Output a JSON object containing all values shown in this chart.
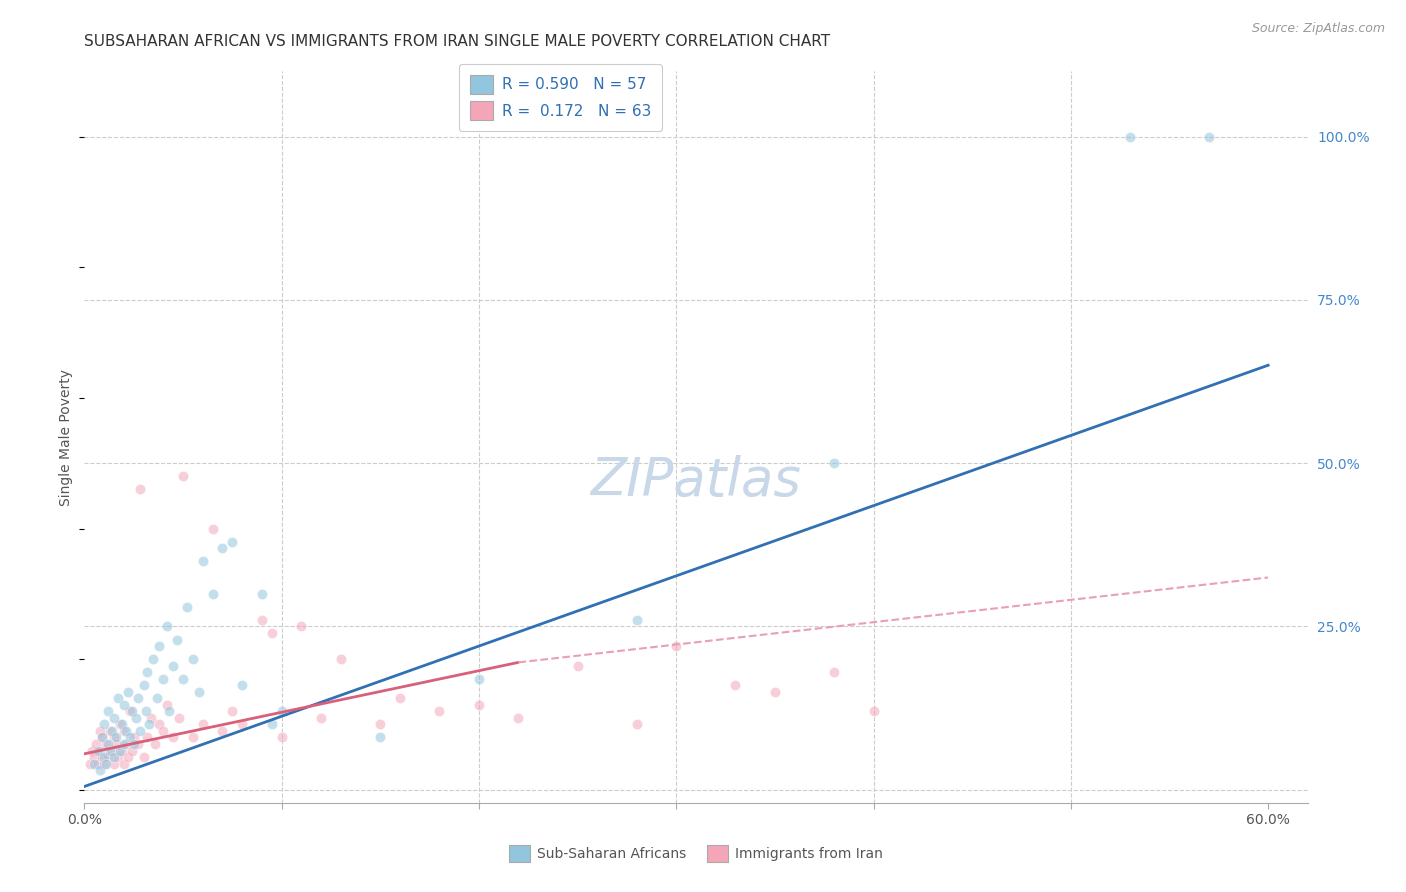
{
  "title": "SUBSAHARAN AFRICAN VS IMMIGRANTS FROM IRAN SINGLE MALE POVERTY CORRELATION CHART",
  "source": "Source: ZipAtlas.com",
  "ylabel": "Single Male Poverty",
  "xlim": [
    0.0,
    0.62
  ],
  "ylim": [
    -0.02,
    1.1
  ],
  "legend1_r": "0.590",
  "legend1_n": "57",
  "legend2_r": "0.172",
  "legend2_n": "63",
  "blue_color": "#92c5de",
  "pink_color": "#f4a6b8",
  "blue_line_color": "#3070b3",
  "pink_line_color": "#d9607a",
  "pink_dashed_color": "#e8a0b4",
  "watermark": "ZIPatlas",
  "legend_label1": "Sub-Saharan Africans",
  "legend_label2": "Immigrants from Iran",
  "blue_scatter_x": [
    0.005,
    0.007,
    0.008,
    0.009,
    0.01,
    0.01,
    0.011,
    0.012,
    0.012,
    0.013,
    0.014,
    0.015,
    0.015,
    0.016,
    0.017,
    0.018,
    0.019,
    0.02,
    0.02,
    0.021,
    0.022,
    0.023,
    0.024,
    0.025,
    0.026,
    0.027,
    0.028,
    0.03,
    0.031,
    0.032,
    0.033,
    0.035,
    0.037,
    0.038,
    0.04,
    0.042,
    0.043,
    0.045,
    0.047,
    0.05,
    0.052,
    0.055,
    0.058,
    0.06,
    0.065,
    0.07,
    0.075,
    0.08,
    0.09,
    0.095,
    0.1,
    0.15,
    0.2,
    0.28,
    0.38,
    0.53,
    0.57
  ],
  "blue_scatter_y": [
    0.04,
    0.06,
    0.03,
    0.08,
    0.05,
    0.1,
    0.04,
    0.07,
    0.12,
    0.06,
    0.09,
    0.05,
    0.11,
    0.08,
    0.14,
    0.06,
    0.1,
    0.07,
    0.13,
    0.09,
    0.15,
    0.08,
    0.12,
    0.07,
    0.11,
    0.14,
    0.09,
    0.16,
    0.12,
    0.18,
    0.1,
    0.2,
    0.14,
    0.22,
    0.17,
    0.25,
    0.12,
    0.19,
    0.23,
    0.17,
    0.28,
    0.2,
    0.15,
    0.35,
    0.3,
    0.37,
    0.38,
    0.16,
    0.3,
    0.1,
    0.12,
    0.08,
    0.17,
    0.26,
    0.5,
    1.0,
    1.0
  ],
  "pink_scatter_x": [
    0.003,
    0.004,
    0.005,
    0.006,
    0.007,
    0.008,
    0.008,
    0.009,
    0.009,
    0.01,
    0.011,
    0.012,
    0.013,
    0.014,
    0.015,
    0.015,
    0.016,
    0.017,
    0.018,
    0.019,
    0.02,
    0.02,
    0.021,
    0.022,
    0.023,
    0.024,
    0.025,
    0.027,
    0.028,
    0.03,
    0.032,
    0.034,
    0.036,
    0.038,
    0.04,
    0.042,
    0.045,
    0.048,
    0.05,
    0.055,
    0.06,
    0.065,
    0.07,
    0.075,
    0.08,
    0.09,
    0.095,
    0.1,
    0.11,
    0.12,
    0.13,
    0.15,
    0.16,
    0.18,
    0.2,
    0.22,
    0.25,
    0.28,
    0.3,
    0.33,
    0.35,
    0.38,
    0.4
  ],
  "pink_scatter_y": [
    0.04,
    0.06,
    0.05,
    0.07,
    0.04,
    0.06,
    0.09,
    0.05,
    0.08,
    0.04,
    0.07,
    0.05,
    0.09,
    0.06,
    0.04,
    0.08,
    0.07,
    0.05,
    0.1,
    0.06,
    0.04,
    0.09,
    0.07,
    0.05,
    0.12,
    0.06,
    0.08,
    0.07,
    0.46,
    0.05,
    0.08,
    0.11,
    0.07,
    0.1,
    0.09,
    0.13,
    0.08,
    0.11,
    0.48,
    0.08,
    0.1,
    0.4,
    0.09,
    0.12,
    0.1,
    0.26,
    0.24,
    0.08,
    0.25,
    0.11,
    0.2,
    0.1,
    0.14,
    0.12,
    0.13,
    0.11,
    0.19,
    0.1,
    0.22,
    0.16,
    0.15,
    0.18,
    0.12
  ],
  "blue_line_x": [
    0.0,
    0.6
  ],
  "blue_line_y": [
    0.005,
    0.65
  ],
  "pink_solid_line_x": [
    0.0,
    0.22
  ],
  "pink_solid_line_y": [
    0.055,
    0.195
  ],
  "pink_dashed_line_x": [
    0.22,
    0.6
  ],
  "pink_dashed_line_y": [
    0.195,
    0.325
  ],
  "grid_color": "#cccccc",
  "background_color": "#ffffff",
  "title_fontsize": 11,
  "axis_label_fontsize": 10,
  "tick_fontsize": 10,
  "legend_fontsize": 11,
  "watermark_fontsize": 38,
  "watermark_color": "#c8d8e8",
  "scatter_size": 55,
  "scatter_alpha": 0.55,
  "scatter_edgecolor": "white"
}
